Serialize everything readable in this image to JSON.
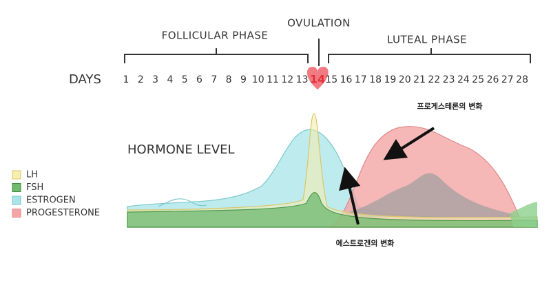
{
  "phases": {
    "follicular": "FOLLICULAR PHASE",
    "ovulation": "OVULATION",
    "luteal": "LUTEAL PHASE"
  },
  "days": {
    "label": "DAYS",
    "numbers": [
      1,
      2,
      3,
      4,
      5,
      6,
      7,
      8,
      9,
      10,
      11,
      12,
      13,
      14,
      15,
      16,
      17,
      18,
      19,
      20,
      21,
      22,
      23,
      24,
      25,
      26,
      27,
      28
    ]
  },
  "hormone_level": "HORMONE LEVEL",
  "legend": [
    "LH",
    "FSH",
    "ESTROGEN",
    "PROGESTERONE"
  ],
  "annotations": {
    "progesterone": "프로게스테론의 변화",
    "estrogen": "에스트로겐의 변화"
  }
}
